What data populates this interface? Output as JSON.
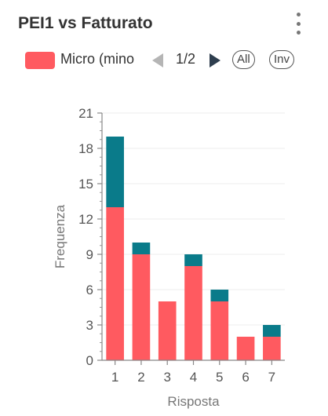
{
  "header": {
    "title": "PEI1 vs Fatturato",
    "menu_icon": "kebab-menu-icon"
  },
  "legend": {
    "items": [
      {
        "label": "Micro (mino",
        "color": "#ff5a60"
      }
    ],
    "page": "1/2",
    "prev_icon": "triangle-left-icon",
    "next_icon": "triangle-right-icon",
    "all_label": "All",
    "inv_label": "Inv"
  },
  "colors": {
    "series_1": "#ff5a60",
    "series_2": "#0a7b8a",
    "prev_disabled": "#b5b5b5",
    "next_active": "#2e3e4e"
  },
  "chart_data": {
    "type": "bar",
    "stacked": true,
    "categories": [
      "1",
      "2",
      "3",
      "4",
      "5",
      "6",
      "7"
    ],
    "series": [
      {
        "name": "Micro (mino",
        "color": "#ff5a60",
        "values": [
          13,
          9,
          5,
          8,
          5,
          2,
          2
        ]
      },
      {
        "color": "#0a7b8a",
        "values": [
          6,
          1,
          0,
          1,
          1,
          0,
          1
        ]
      }
    ],
    "xlabel": "Risposta",
    "ylabel": "Frequenza",
    "ylim": [
      0,
      21
    ],
    "yticks": [
      0,
      3,
      6,
      9,
      12,
      15,
      18,
      21
    ],
    "grid": true
  }
}
